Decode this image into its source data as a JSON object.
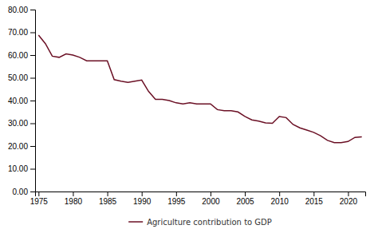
{
  "chart_data": {
    "type": "line",
    "x": [
      1975,
      1976,
      1977,
      1978,
      1979,
      1980,
      1981,
      1982,
      1983,
      1984,
      1985,
      1986,
      1987,
      1988,
      1989,
      1990,
      1991,
      1992,
      1993,
      1994,
      1995,
      1996,
      1997,
      1998,
      1999,
      2000,
      2001,
      2002,
      2003,
      2004,
      2005,
      2006,
      2007,
      2008,
      2009,
      2010,
      2011,
      2012,
      2013,
      2014,
      2015,
      2016,
      2017,
      2018,
      2019,
      2020,
      2021,
      2022
    ],
    "series": [
      {
        "name": "Agriculture contribution to GDP",
        "color": "#6b1025",
        "values": [
          68.8,
          65.0,
          59.5,
          59.0,
          60.5,
          60.0,
          59.0,
          57.5,
          57.5,
          57.5,
          57.5,
          49.2,
          48.5,
          48.0,
          48.5,
          49.0,
          44.0,
          40.5,
          40.5,
          40.0,
          39.0,
          38.5,
          39.0,
          38.5,
          38.5,
          38.5,
          36.0,
          35.5,
          35.5,
          35.0,
          33.0,
          31.5,
          31.0,
          30.2,
          30.0,
          33.0,
          32.5,
          29.5,
          28.0,
          27.0,
          26.0,
          24.5,
          22.5,
          21.5,
          21.5,
          22.0,
          23.8,
          24.0
        ]
      }
    ],
    "xlim": [
      1974.5,
      2022.5
    ],
    "xticks": [
      1975,
      1980,
      1985,
      1990,
      1995,
      2000,
      2005,
      2010,
      2015,
      2020
    ],
    "ylim": [
      0,
      80
    ],
    "yticks": [
      {
        "value": 0,
        "label": "0.00"
      },
      {
        "value": 10,
        "label": "10.00"
      },
      {
        "value": 20,
        "label": "20.00"
      },
      {
        "value": 30,
        "label": "30.00"
      },
      {
        "value": 40,
        "label": "40.00"
      },
      {
        "value": 50,
        "label": "50.00"
      },
      {
        "value": 60,
        "label": "60.00"
      },
      {
        "value": 70,
        "label": "70.00"
      },
      {
        "value": 80,
        "label": "80.00"
      }
    ],
    "grid": false,
    "legend": "bottom"
  }
}
